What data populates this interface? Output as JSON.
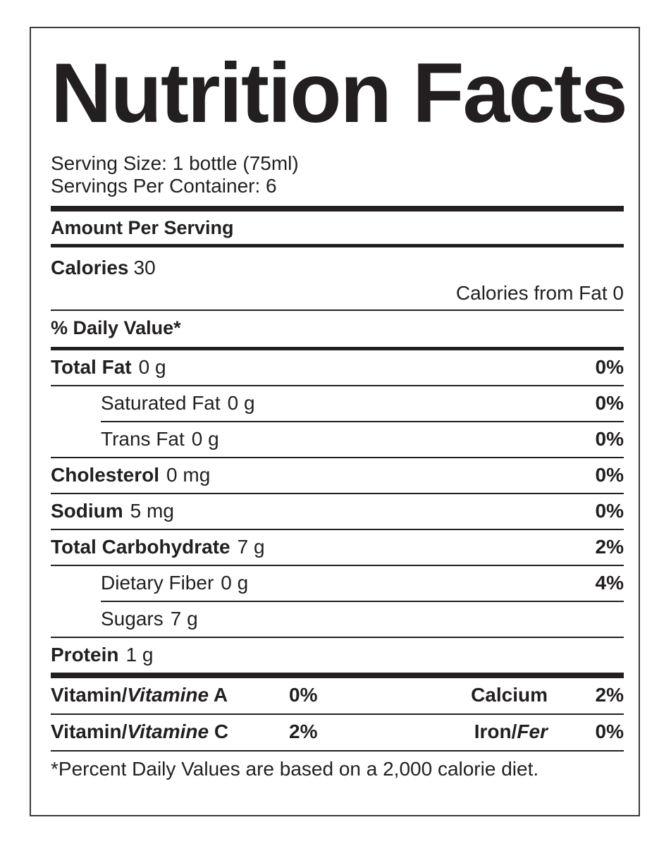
{
  "colors": {
    "text": "#231f20",
    "border": "#3b3b3b",
    "background": "#ffffff"
  },
  "label": {
    "title": "Nutrition Facts",
    "serving_size": "Serving Size: 1 bottle (75ml)",
    "servings_per_container": "Servings Per Container: 6",
    "amount_per_serving": "Amount Per Serving",
    "calories_label": "Calories",
    "calories_value": "30",
    "calories_from_fat": "Calories from Fat 0",
    "daily_value_header": "% Daily Value*",
    "rows": [
      {
        "name": "Total Fat",
        "amount": "0 g",
        "dv": "0%"
      },
      {
        "name": "Saturated Fat",
        "amount": "0 g",
        "dv": "0%"
      },
      {
        "name": "Trans Fat",
        "amount": "0 g",
        "dv": "0%"
      },
      {
        "name": "Cholesterol",
        "amount": "0 mg",
        "dv": "0%"
      },
      {
        "name": "Sodium",
        "amount": "5 mg",
        "dv": "0%"
      },
      {
        "name": "Total Carbohydrate",
        "amount": "7 g",
        "dv": "2%"
      },
      {
        "name": "Dietary Fiber",
        "amount": "0 g",
        "dv": "4%"
      },
      {
        "name": "Sugars",
        "amount": "7 g",
        "dv": ""
      },
      {
        "name": "Protein",
        "amount": "1 g",
        "dv": ""
      }
    ],
    "vitamins": [
      {
        "left_prefix": "Vitamin/",
        "left_italic": "Vitamine",
        "left_suffix": " A",
        "left_pct": "0%",
        "right_prefix": "Calcium",
        "right_italic": "",
        "right_pct": "2%"
      },
      {
        "left_prefix": "Vitamin/",
        "left_italic": "Vitamine",
        "left_suffix": " C",
        "left_pct": "2%",
        "right_prefix": "Iron/",
        "right_italic": "Fer",
        "right_pct": "0%"
      }
    ],
    "footnote": "*Percent Daily Values are based on a 2,000 calorie diet."
  }
}
